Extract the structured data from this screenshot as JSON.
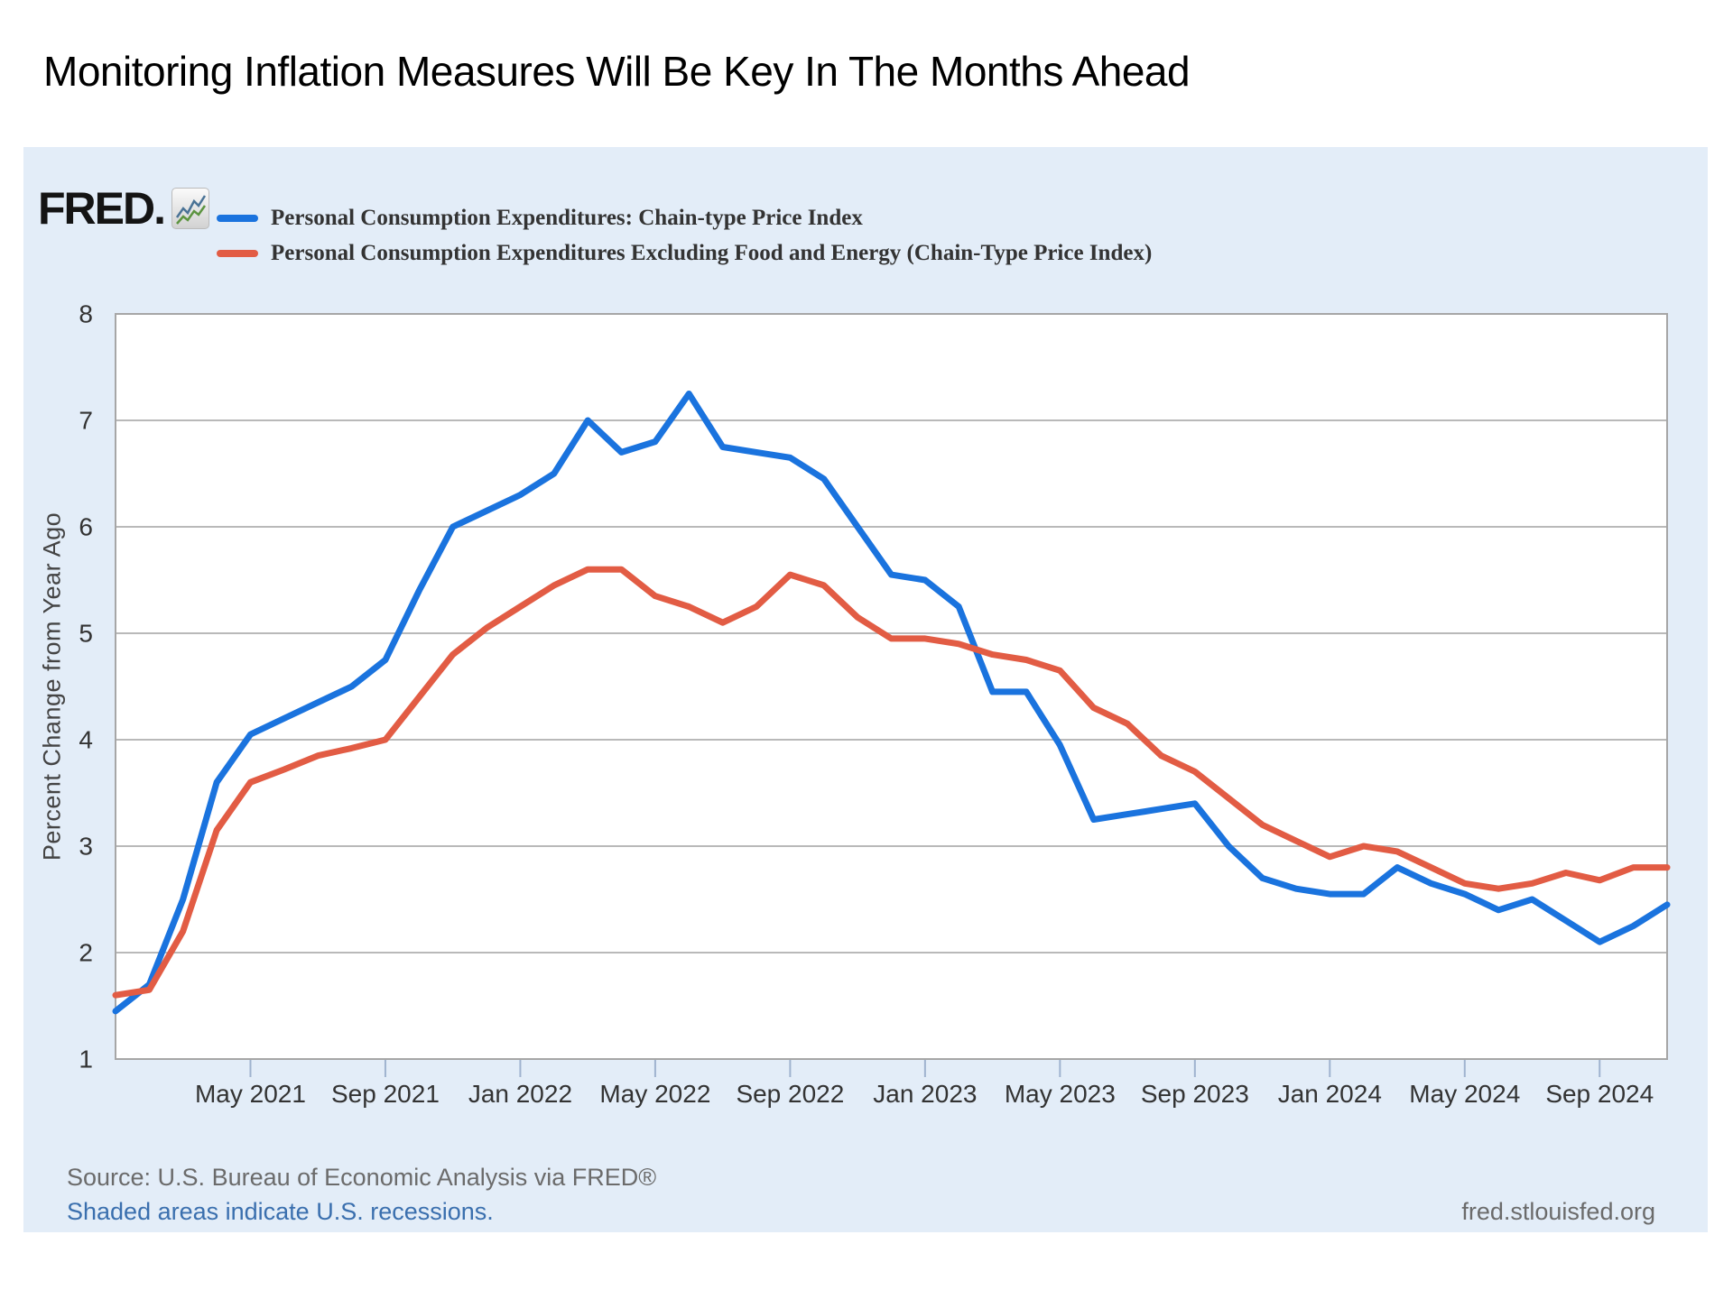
{
  "page": {
    "title": "Monitoring Inflation Measures Will Be Key In The Months Ahead"
  },
  "logo": {
    "text": "FRED.",
    "icon": "sparkline-chart-icon"
  },
  "legend": {
    "items": [
      {
        "label": "Personal Consumption Expenditures: Chain-type Price Index",
        "color": "#1a73de"
      },
      {
        "label": "Personal Consumption Expenditures Excluding Food and Energy (Chain-Type Price Index)",
        "color": "#e25c44"
      }
    ]
  },
  "y_axis": {
    "title": "Percent Change from Year Ago",
    "min": 1,
    "max": 8,
    "ticks": [
      1,
      2,
      3,
      4,
      5,
      6,
      7,
      8
    ]
  },
  "x_axis": {
    "tick_labels": [
      "May 2021",
      "Sep 2021",
      "Jan 2022",
      "May 2022",
      "Sep 2022",
      "Jan 2023",
      "May 2023",
      "Sep 2023",
      "Jan 2024",
      "May 2024",
      "Sep 2024"
    ],
    "tick_month_indices": [
      4,
      8,
      12,
      16,
      20,
      24,
      28,
      32,
      36,
      40,
      44
    ]
  },
  "footer": {
    "source": "Source: U.S. Bureau of Economic Analysis via FRED®",
    "note": "Shaded areas indicate U.S. recessions.",
    "site": "fred.stlouisfed.org"
  },
  "chart_data": {
    "type": "line",
    "title": "",
    "xlabel": "",
    "ylabel": "Percent Change from Year Ago",
    "frequency": "monthly",
    "ylim": [
      1,
      8
    ],
    "grid": "horizontal",
    "legend_position": "top-left",
    "x": [
      "2021-01",
      "2021-02",
      "2021-03",
      "2021-04",
      "2021-05",
      "2021-06",
      "2021-07",
      "2021-08",
      "2021-09",
      "2021-10",
      "2021-11",
      "2021-12",
      "2022-01",
      "2022-02",
      "2022-03",
      "2022-04",
      "2022-05",
      "2022-06",
      "2022-07",
      "2022-08",
      "2022-09",
      "2022-10",
      "2022-11",
      "2022-12",
      "2023-01",
      "2023-02",
      "2023-03",
      "2023-04",
      "2023-05",
      "2023-06",
      "2023-07",
      "2023-08",
      "2023-09",
      "2023-10",
      "2023-11",
      "2023-12",
      "2024-01",
      "2024-02",
      "2024-03",
      "2024-04",
      "2024-05",
      "2024-06",
      "2024-07",
      "2024-08",
      "2024-09",
      "2024-10",
      "2024-11"
    ],
    "series": [
      {
        "name": "Personal Consumption Expenditures: Chain-type Price Index",
        "color": "#1a73de",
        "values": [
          1.45,
          1.7,
          2.5,
          3.6,
          4.05,
          4.2,
          4.35,
          4.5,
          4.75,
          5.4,
          6.0,
          6.15,
          6.3,
          6.5,
          7.0,
          6.7,
          6.8,
          7.25,
          6.75,
          6.7,
          6.65,
          6.45,
          6.0,
          5.55,
          5.5,
          5.25,
          4.45,
          4.45,
          3.95,
          3.25,
          3.3,
          3.35,
          3.4,
          3.0,
          2.7,
          2.6,
          2.55,
          2.55,
          2.8,
          2.65,
          2.55,
          2.4,
          2.5,
          2.3,
          2.1,
          2.25,
          2.45
        ]
      },
      {
        "name": "Personal Consumption Expenditures Excluding Food and Energy (Chain-Type Price Index)",
        "color": "#e25c44",
        "values": [
          1.6,
          1.65,
          2.2,
          3.15,
          3.6,
          3.72,
          3.85,
          3.92,
          4.0,
          4.4,
          4.8,
          5.05,
          5.25,
          5.45,
          5.6,
          5.6,
          5.35,
          5.25,
          5.1,
          5.25,
          5.55,
          5.45,
          5.15,
          4.95,
          4.95,
          4.9,
          4.8,
          4.75,
          4.65,
          4.3,
          4.15,
          3.85,
          3.7,
          3.45,
          3.2,
          3.05,
          2.9,
          3.0,
          2.95,
          2.8,
          2.65,
          2.6,
          2.65,
          2.75,
          2.68,
          2.8,
          2.8
        ]
      }
    ]
  },
  "style": {
    "panel_bg": "#e3edf8",
    "plot_bg": "#ffffff",
    "grid_color": "#b9b9b9",
    "border_color": "#a6a6a6",
    "tick_color": "#9fb3cf",
    "axis_label_color": "#333333"
  }
}
